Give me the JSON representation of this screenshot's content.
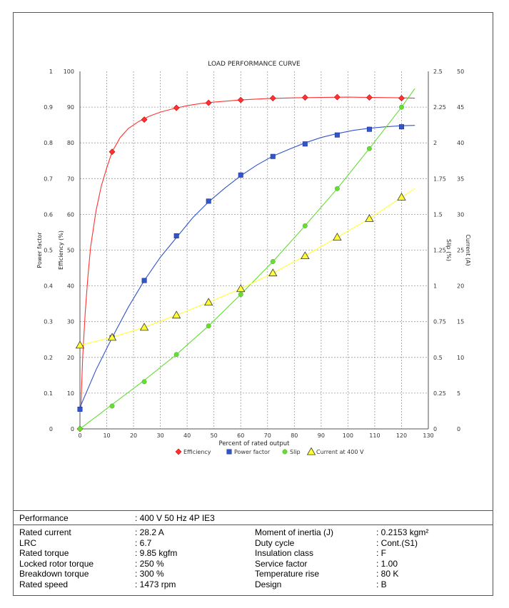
{
  "chart_data": {
    "type": "line",
    "title": "LOAD PERFORMANCE CURVE",
    "xlabel": "Percent of rated output",
    "xlim": [
      0,
      130
    ],
    "x_ticks": [
      "0",
      "10",
      "20",
      "30",
      "40",
      "50",
      "60",
      "70",
      "80",
      "90",
      "100",
      "110",
      "120",
      "130"
    ],
    "grid": true,
    "legend_position": "bottom",
    "axes": {
      "power_factor": {
        "label": "Power factor",
        "side": "left-outer",
        "ylim": [
          0,
          1
        ],
        "ticks": [
          "0",
          "0.1",
          "0.2",
          "0.3",
          "0.4",
          "0.5",
          "0.6",
          "0.7",
          "0.8",
          "0.9",
          "1"
        ]
      },
      "efficiency": {
        "label": "Efficiency (%)",
        "side": "left-inner",
        "ylim": [
          0,
          100
        ],
        "ticks": [
          "0",
          "10",
          "20",
          "30",
          "40",
          "50",
          "60",
          "70",
          "80",
          "90",
          "100"
        ]
      },
      "slip": {
        "label": "Slip (%)",
        "side": "right-inner",
        "ylim": [
          0,
          2.5
        ],
        "ticks": [
          "0",
          "0.25",
          "0.5",
          "0.75",
          "1",
          "1.25",
          "1.5",
          "1.75",
          "2",
          "2.25",
          "2.5"
        ]
      },
      "current": {
        "label": "Current (A)",
        "side": "right-outer",
        "ylim": [
          0,
          50
        ],
        "ticks": [
          "0",
          "5",
          "10",
          "15",
          "20",
          "25",
          "30",
          "35",
          "40",
          "45",
          "50"
        ]
      }
    },
    "series": [
      {
        "name": "Efficiency",
        "axis": "efficiency",
        "color": "#ff3333",
        "marker": "diamond",
        "x": [
          0,
          12,
          24,
          36,
          48,
          60,
          72,
          84,
          96,
          108,
          120
        ],
        "y": [
          0,
          77.5,
          86.5,
          89.8,
          91.2,
          92.0,
          92.5,
          92.7,
          92.8,
          92.7,
          92.5
        ],
        "curve_x": [
          0.3,
          1,
          2,
          3,
          4,
          6,
          8,
          10,
          12,
          15,
          18,
          22,
          26,
          30,
          35,
          40,
          45,
          50,
          60,
          70,
          80,
          90,
          100,
          110,
          120,
          125
        ],
        "curve_y": [
          5,
          20,
          33,
          43,
          51,
          61,
          68,
          73,
          77.5,
          81.5,
          84,
          86,
          87.5,
          88.6,
          89.6,
          90.4,
          91.0,
          91.4,
          92.0,
          92.4,
          92.6,
          92.7,
          92.8,
          92.7,
          92.6,
          92.5
        ]
      },
      {
        "name": "Power factor",
        "axis": "power_factor",
        "color": "#3355cc",
        "marker": "square",
        "x": [
          0,
          12,
          24,
          36,
          48,
          60,
          72,
          84,
          96,
          108,
          120
        ],
        "y": [
          0.055,
          0.255,
          0.415,
          0.54,
          0.637,
          0.71,
          0.762,
          0.797,
          0.822,
          0.838,
          0.845
        ],
        "curve_x": [
          0,
          6,
          12,
          18,
          24,
          30,
          36,
          42,
          48,
          54,
          60,
          66,
          72,
          78,
          84,
          90,
          96,
          102,
          108,
          114,
          120,
          125
        ],
        "curve_y": [
          0.06,
          0.165,
          0.255,
          0.34,
          0.415,
          0.48,
          0.535,
          0.59,
          0.635,
          0.673,
          0.708,
          0.738,
          0.763,
          0.782,
          0.8,
          0.815,
          0.826,
          0.835,
          0.841,
          0.845,
          0.848,
          0.849
        ]
      },
      {
        "name": "Slip",
        "axis": "slip",
        "color": "#66dd33",
        "marker": "circle",
        "x": [
          0,
          12,
          24,
          36,
          48,
          60,
          72,
          84,
          96,
          108,
          120
        ],
        "y": [
          0,
          0.16,
          0.33,
          0.52,
          0.72,
          0.94,
          1.17,
          1.42,
          1.68,
          1.96,
          2.25
        ],
        "curve_x": [
          0,
          12,
          24,
          36,
          48,
          60,
          72,
          84,
          96,
          108,
          120,
          125
        ],
        "curve_y": [
          0,
          0.17,
          0.34,
          0.52,
          0.72,
          0.94,
          1.17,
          1.42,
          1.68,
          1.96,
          2.25,
          2.38
        ]
      },
      {
        "name": "Current at 400 V",
        "axis": "current",
        "color": "#ffff33",
        "marker": "triangle",
        "x": [
          0,
          12,
          24,
          36,
          48,
          60,
          72,
          84,
          96,
          108,
          120
        ],
        "y": [
          11.7,
          12.8,
          14.2,
          15.9,
          17.7,
          19.6,
          21.8,
          24.2,
          26.8,
          29.4,
          32.4
        ],
        "curve_x": [
          0,
          12,
          24,
          36,
          48,
          60,
          72,
          84,
          96,
          108,
          120,
          125
        ],
        "curve_y": [
          11.7,
          12.8,
          14.2,
          15.9,
          17.7,
          19.6,
          21.8,
          24.2,
          26.8,
          29.4,
          32.4,
          33.6
        ]
      }
    ]
  },
  "table": {
    "header": {
      "label": "Performance",
      "value": ": 400 V 50 Hz 4P IE3"
    },
    "left": [
      {
        "label": "Rated current",
        "value": ": 28.2 A"
      },
      {
        "label": "LRC",
        "value": ": 6.7"
      },
      {
        "label": "Rated torque",
        "value": ": 9.85 kgfm"
      },
      {
        "label": "Locked rotor torque",
        "value": ": 250 %"
      },
      {
        "label": "Breakdown torque",
        "value": ": 300 %"
      },
      {
        "label": "Rated speed",
        "value": ": 1473 rpm"
      }
    ],
    "right": [
      {
        "label": "Moment of inertia (J)",
        "value": ": 0.2153 kgm²"
      },
      {
        "label": "Duty cycle",
        "value": ": Cont.(S1)"
      },
      {
        "label": "Insulation class",
        "value": ": F"
      },
      {
        "label": "Service factor",
        "value": ": 1.00"
      },
      {
        "label": "Temperature rise",
        "value": ": 80 K"
      },
      {
        "label": "Design",
        "value": ": B"
      }
    ]
  }
}
